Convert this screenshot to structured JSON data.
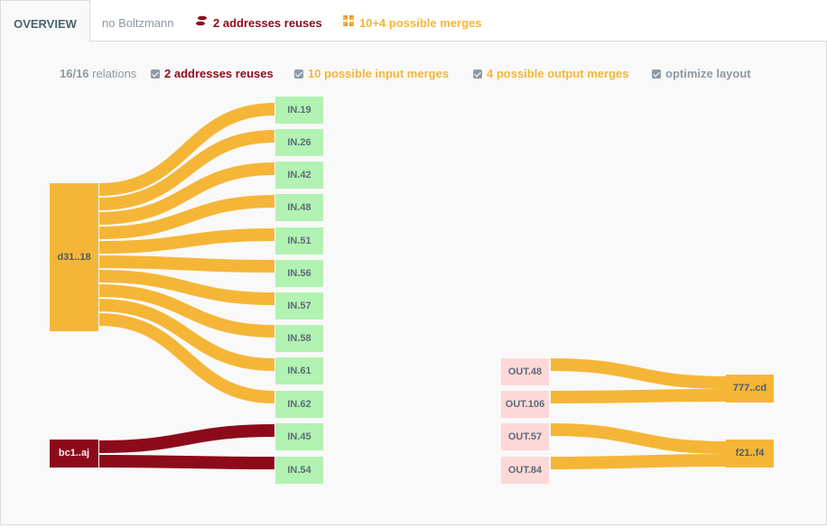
{
  "tabs": {
    "overview": "OVERVIEW",
    "no_boltzmann": "no Boltzmann",
    "reuses": "2 addresses reuses",
    "merges": "10+4 possible merges"
  },
  "legend": {
    "relations_count": "16/16",
    "relations_label": "relations",
    "reuses": "2 addresses reuses",
    "input_merges": "10 possible input merges",
    "output_merges": "4 possible output merges",
    "optimize": "optimize layout"
  },
  "colors": {
    "input": "#b2f2b2",
    "output": "#fdd8d8",
    "merge_flow": "#f5b637",
    "reuse_flow": "#8d0a1b",
    "muted": "#8c99a2"
  },
  "addresses": {
    "input_a": "d31..18",
    "input_b": "bc1..aj",
    "output_a": "777..cd",
    "output_b": "f21..f4"
  },
  "inputs": [
    "IN.19",
    "IN.26",
    "IN.42",
    "IN.48",
    "IN.51",
    "IN.56",
    "IN.57",
    "IN.58",
    "IN.61",
    "IN.62",
    "IN.45",
    "IN.54"
  ],
  "outputs": [
    "OUT.48",
    "OUT.106",
    "OUT.57",
    "OUT.84"
  ]
}
